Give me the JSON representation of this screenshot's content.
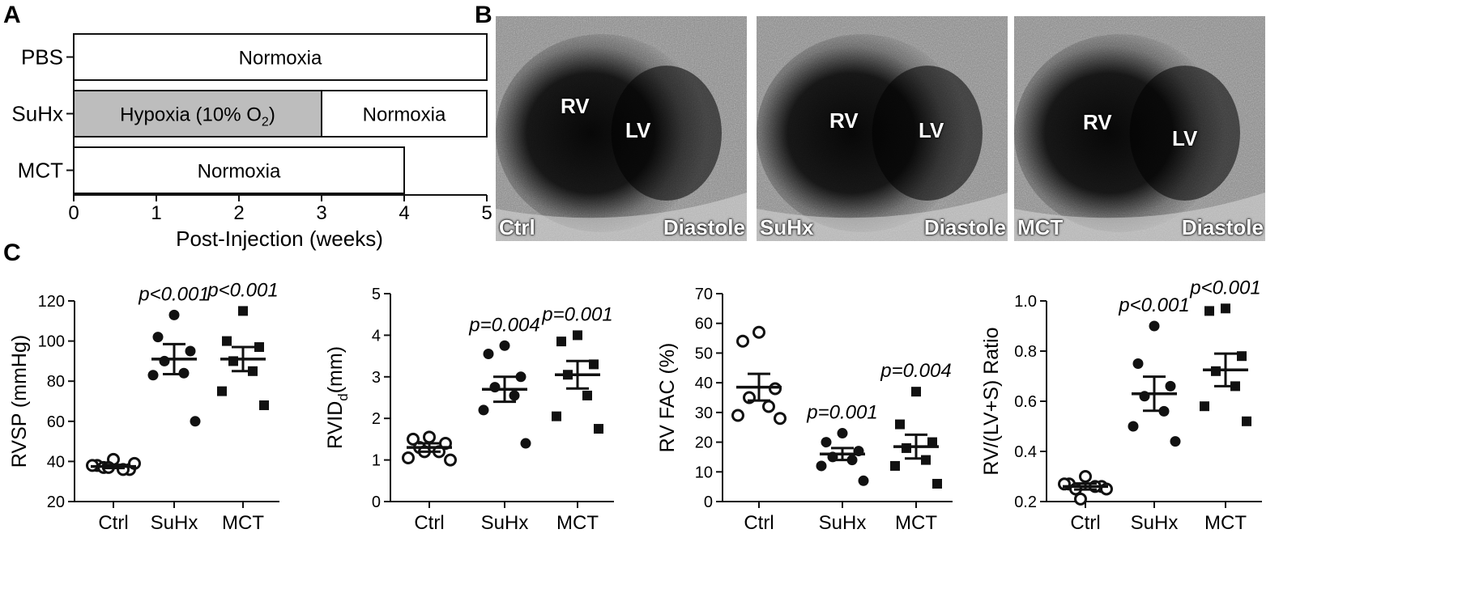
{
  "panel_labels": {
    "a": "A",
    "b": "B",
    "c": "C"
  },
  "timeline": {
    "xlabel": "Post-Injection (weeks)",
    "ticks": [
      0,
      1,
      2,
      3,
      4,
      5
    ],
    "xlim": [
      0,
      5
    ],
    "rows": [
      {
        "label": "PBS",
        "segments": [
          {
            "start": 0,
            "end": 5,
            "text": "Normoxia",
            "fill": "#ffffff"
          }
        ]
      },
      {
        "label": "SuHx",
        "segments": [
          {
            "start": 0,
            "end": 3,
            "text": "Hypoxia (10% O",
            "subscript": "2",
            "text_after": ")",
            "fill": "#bdbdbd"
          },
          {
            "start": 3,
            "end": 5,
            "text": "Normoxia",
            "fill": "#ffffff"
          }
        ]
      },
      {
        "label": "MCT",
        "segments": [
          {
            "start": 0,
            "end": 4,
            "text": "Normoxia",
            "fill": "#ffffff"
          }
        ]
      }
    ]
  },
  "echo_panels": [
    {
      "group": "Ctrl",
      "phase": "Diastole",
      "rv": "RV",
      "lv": "LV"
    },
    {
      "group": "SuHx",
      "phase": "Diastole",
      "rv": "RV",
      "lv": "LV"
    },
    {
      "group": "MCT",
      "phase": "Diastole",
      "rv": "RV",
      "lv": "LV"
    }
  ],
  "chart_data": [
    {
      "type": "scatter",
      "ylabel": "RVSP (mmHg)",
      "ylim": [
        20,
        120
      ],
      "yticks": [
        20,
        40,
        60,
        80,
        100,
        120
      ],
      "categories": [
        "Ctrl",
        "SuHx",
        "MCT"
      ],
      "markers": [
        "open-circle",
        "filled-circle",
        "filled-square"
      ],
      "points": [
        [
          41,
          38,
          36,
          37,
          36,
          38,
          39,
          37
        ],
        [
          113,
          102,
          95,
          90,
          84,
          83,
          60
        ],
        [
          115,
          100,
          97,
          90,
          85,
          75,
          68
        ]
      ],
      "means": [
        37.5,
        91,
        91
      ],
      "sem": [
        0.8,
        7.5,
        6
      ],
      "pvalues": [
        "",
        "p<0.001",
        "p<0.001"
      ]
    },
    {
      "type": "scatter",
      "ylabel": "RVID",
      "ylabel_sub": "d",
      "ylabel_after": "(mm)",
      "ylim": [
        0,
        5
      ],
      "yticks": [
        0,
        1,
        2,
        3,
        4,
        5
      ],
      "categories": [
        "Ctrl",
        "SuHx",
        "MCT"
      ],
      "markers": [
        "open-circle",
        "filled-circle",
        "filled-square"
      ],
      "points": [
        [
          1.55,
          1.5,
          1.4,
          1.3,
          1.2,
          1.05,
          1.0,
          1.2
        ],
        [
          3.75,
          3.55,
          3.0,
          2.75,
          2.55,
          2.2,
          1.4
        ],
        [
          4.0,
          3.85,
          3.3,
          3.05,
          2.55,
          2.05,
          1.75
        ]
      ],
      "means": [
        1.3,
        2.7,
        3.05
      ],
      "sem": [
        0.1,
        0.3,
        0.33
      ],
      "pvalues": [
        "",
        "p=0.004",
        "p=0.001"
      ]
    },
    {
      "type": "scatter",
      "ylabel": "RV FAC (%)",
      "ylim": [
        0,
        70
      ],
      "yticks": [
        0,
        10,
        20,
        30,
        40,
        50,
        60,
        70
      ],
      "categories": [
        "Ctrl",
        "SuHx",
        "MCT"
      ],
      "markers": [
        "open-circle",
        "filled-circle",
        "filled-square"
      ],
      "points": [
        [
          57,
          54,
          38,
          35,
          32,
          29,
          28
        ],
        [
          23,
          20,
          17,
          15,
          14,
          12,
          7
        ],
        [
          37,
          26,
          20,
          18,
          14,
          12,
          6
        ]
      ],
      "means": [
        38.5,
        16,
        18.5
      ],
      "sem": [
        4.5,
        2,
        4
      ],
      "pvalues": [
        "",
        "p=0.001",
        "p=0.004"
      ]
    },
    {
      "type": "scatter",
      "ylabel": "RV/(LV+S) Ratio",
      "ylim": [
        0.2,
        1.0
      ],
      "yticks": [
        0.2,
        0.4,
        0.6,
        0.8,
        1.0
      ],
      "ytick_labels": [
        "0.2",
        "0.4",
        "0.6",
        "0.8",
        "1.0"
      ],
      "categories": [
        "Ctrl",
        "SuHx",
        "MCT"
      ],
      "markers": [
        "open-circle",
        "filled-circle",
        "filled-square"
      ],
      "points": [
        [
          0.3,
          0.27,
          0.26,
          0.25,
          0.26,
          0.27,
          0.25,
          0.21
        ],
        [
          0.9,
          0.75,
          0.66,
          0.62,
          0.56,
          0.5,
          0.44
        ],
        [
          0.97,
          0.96,
          0.78,
          0.72,
          0.66,
          0.58,
          0.52
        ]
      ],
      "means": [
        0.26,
        0.63,
        0.725
      ],
      "sem": [
        0.012,
        0.068,
        0.065
      ],
      "pvalues": [
        "",
        "p<0.001",
        "p<0.001"
      ]
    }
  ]
}
